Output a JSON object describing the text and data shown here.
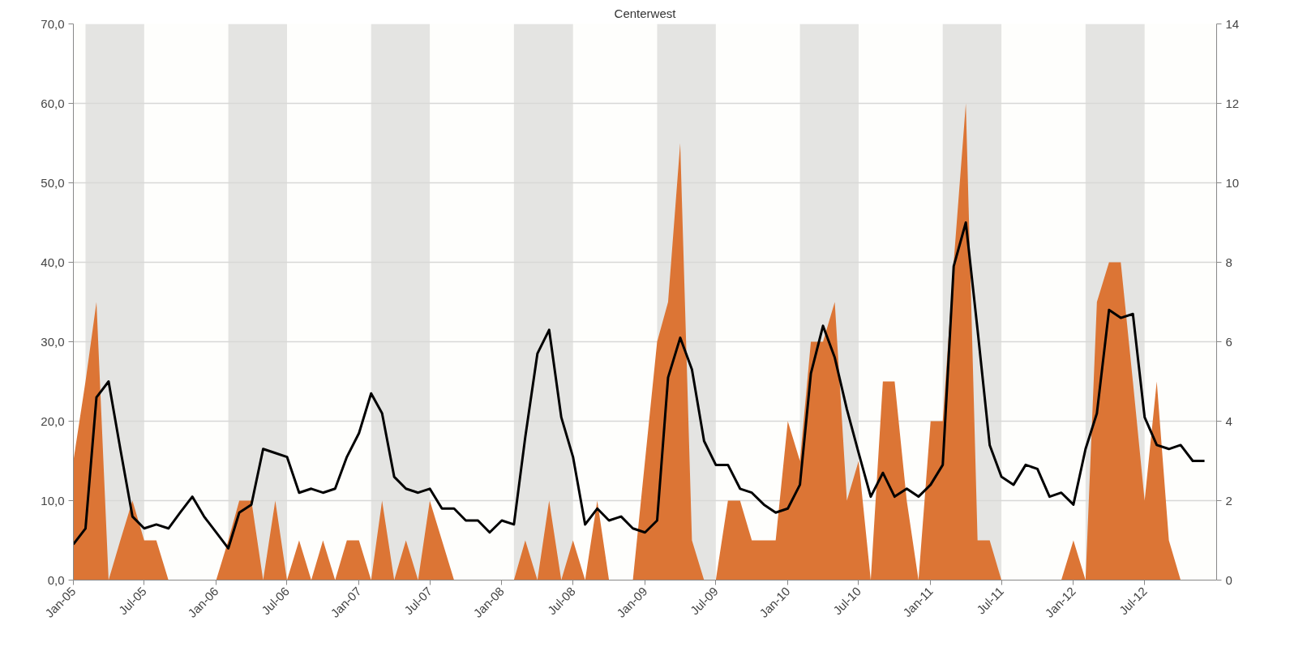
{
  "chart_data": {
    "type": "area",
    "title": "Centerwest",
    "x": [
      "2005-01",
      "2005-02",
      "2005-03",
      "2005-04",
      "2005-05",
      "2005-06",
      "2005-07",
      "2005-08",
      "2005-09",
      "2005-10",
      "2005-11",
      "2005-12",
      "2006-01",
      "2006-02",
      "2006-03",
      "2006-04",
      "2006-05",
      "2006-06",
      "2006-07",
      "2006-08",
      "2006-09",
      "2006-10",
      "2006-11",
      "2006-12",
      "2007-01",
      "2007-02",
      "2007-03",
      "2007-04",
      "2007-05",
      "2007-06",
      "2007-07",
      "2007-08",
      "2007-09",
      "2007-10",
      "2007-11",
      "2007-12",
      "2008-01",
      "2008-02",
      "2008-03",
      "2008-04",
      "2008-05",
      "2008-06",
      "2008-07",
      "2008-08",
      "2008-09",
      "2008-10",
      "2008-11",
      "2008-12",
      "2009-01",
      "2009-02",
      "2009-03",
      "2009-04",
      "2009-05",
      "2009-06",
      "2009-07",
      "2009-08",
      "2009-09",
      "2009-10",
      "2009-11",
      "2009-12",
      "2010-01",
      "2010-02",
      "2010-03",
      "2010-04",
      "2010-05",
      "2010-06",
      "2010-07",
      "2010-08",
      "2010-09",
      "2010-10",
      "2010-11",
      "2010-12",
      "2011-01",
      "2011-02",
      "2011-03",
      "2011-04",
      "2011-05",
      "2011-06",
      "2011-07",
      "2011-08",
      "2011-09",
      "2011-10",
      "2011-11",
      "2011-12",
      "2012-01",
      "2012-02",
      "2012-03",
      "2012-04",
      "2012-05",
      "2012-06",
      "2012-07",
      "2012-08",
      "2012-09",
      "2012-10",
      "2012-11",
      "2012-12"
    ],
    "xlim": [
      "2005-01",
      "2013-01"
    ],
    "xticks": [
      {
        "value": "2005-01",
        "label": "Jan-05"
      },
      {
        "value": "2005-07",
        "label": "Jul-05"
      },
      {
        "value": "2006-01",
        "label": "Jan-06"
      },
      {
        "value": "2006-07",
        "label": "Jul-06"
      },
      {
        "value": "2007-01",
        "label": "Jan-07"
      },
      {
        "value": "2007-07",
        "label": "Jul-07"
      },
      {
        "value": "2008-01",
        "label": "Jan-08"
      },
      {
        "value": "2008-07",
        "label": "Jul-08"
      },
      {
        "value": "2009-01",
        "label": "Jan-09"
      },
      {
        "value": "2009-07",
        "label": "Jul-09"
      },
      {
        "value": "2010-01",
        "label": "Jan-10"
      },
      {
        "value": "2010-07",
        "label": "Jul-10"
      },
      {
        "value": "2011-01",
        "label": "Jan-11"
      },
      {
        "value": "2011-07",
        "label": "Jul-11"
      },
      {
        "value": "2012-01",
        "label": "Jan-12"
      },
      {
        "value": "2012-07",
        "label": "Jul-12"
      }
    ],
    "ylim": [
      0,
      70
    ],
    "yticks": [
      {
        "value": 0,
        "label": "0,0"
      },
      {
        "value": 10,
        "label": "10,0"
      },
      {
        "value": 20,
        "label": "20,0"
      },
      {
        "value": 30,
        "label": "30,0"
      },
      {
        "value": 40,
        "label": "40,0"
      },
      {
        "value": 50,
        "label": "50,0"
      },
      {
        "value": 60,
        "label": "60,0"
      },
      {
        "value": 70,
        "label": "70,0"
      }
    ],
    "y2lim": [
      0,
      14
    ],
    "y2ticks": [
      0,
      2,
      4,
      6,
      8,
      10,
      12,
      14
    ],
    "grid": "y",
    "bands": [
      {
        "axis": "x",
        "from": "2005-02",
        "to": "2005-07",
        "color": "#e4e4e2"
      },
      {
        "axis": "x",
        "from": "2006-02",
        "to": "2006-07",
        "color": "#e4e4e2"
      },
      {
        "axis": "x",
        "from": "2007-02",
        "to": "2007-07",
        "color": "#e4e4e2"
      },
      {
        "axis": "x",
        "from": "2008-02",
        "to": "2008-07",
        "color": "#e4e4e2"
      },
      {
        "axis": "x",
        "from": "2009-02",
        "to": "2009-07",
        "color": "#e4e4e2"
      },
      {
        "axis": "x",
        "from": "2010-02",
        "to": "2010-07",
        "color": "#e4e4e2"
      },
      {
        "axis": "x",
        "from": "2011-02",
        "to": "2011-07",
        "color": "#e4e4e2"
      },
      {
        "axis": "x",
        "from": "2012-02",
        "to": "2012-07",
        "color": "#e4e4e2"
      }
    ],
    "series": [
      {
        "color": "#dc7535",
        "values": [
          15,
          25,
          35,
          0,
          5,
          10,
          5,
          5,
          0,
          0,
          0,
          0,
          0,
          5,
          10,
          10,
          0,
          10,
          0,
          5,
          0,
          5,
          0,
          5,
          5,
          0,
          10,
          0,
          5,
          0,
          10,
          5,
          0,
          0,
          0,
          0,
          0,
          0,
          5,
          0,
          10,
          0,
          5,
          0,
          10,
          0,
          0,
          0,
          15,
          30,
          35,
          55,
          5,
          0,
          0,
          10,
          10,
          5,
          5,
          5,
          20,
          15,
          30,
          30,
          35,
          10,
          15,
          0,
          25,
          25,
          10,
          0,
          20,
          20,
          40,
          60,
          5,
          5,
          0,
          0,
          0,
          0,
          0,
          0,
          5,
          0,
          35,
          40,
          40,
          25,
          10,
          25,
          5,
          0,
          0,
          0
        ]
      },
      {
        "type": "line",
        "axis": "y2",
        "color": "#000000",
        "values": [
          0.9,
          1.3,
          4.6,
          5.0,
          3.3,
          1.6,
          1.3,
          1.4,
          1.3,
          1.7,
          2.1,
          1.6,
          1.2,
          0.8,
          1.7,
          1.9,
          3.3,
          3.2,
          3.1,
          2.2,
          2.3,
          2.2,
          2.3,
          3.1,
          3.7,
          4.7,
          4.2,
          2.6,
          2.3,
          2.2,
          2.3,
          1.8,
          1.8,
          1.5,
          1.5,
          1.2,
          1.5,
          1.4,
          3.6,
          5.7,
          6.3,
          4.1,
          3.1,
          1.4,
          1.8,
          1.5,
          1.6,
          1.3,
          1.2,
          1.5,
          5.1,
          6.1,
          5.3,
          3.5,
          2.9,
          2.9,
          2.3,
          2.2,
          1.9,
          1.7,
          1.8,
          2.4,
          5.2,
          6.4,
          5.6,
          4.3,
          3.2,
          2.1,
          2.7,
          2.1,
          2.3,
          2.1,
          2.4,
          2.9,
          7.9,
          9.0,
          6.3,
          3.4,
          2.6,
          2.4,
          2.9,
          2.8,
          2.1,
          2.2,
          1.9,
          3.3,
          4.2,
          6.8,
          6.6,
          6.7,
          4.1,
          3.4,
          3.3,
          3.4,
          3.0,
          3.0
        ]
      }
    ]
  }
}
